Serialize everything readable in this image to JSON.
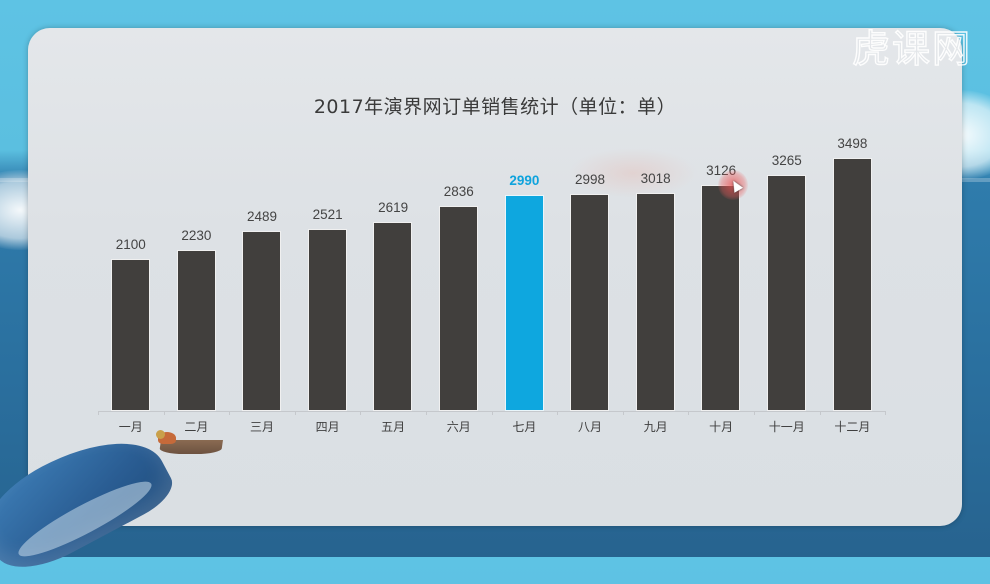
{
  "branding": {
    "logo_text": "虎课网"
  },
  "chart_data": {
    "type": "bar",
    "title": "2017年演界网订单销售统计（单位：单）",
    "xlabel": "",
    "ylabel": "",
    "unit": "单",
    "categories": [
      "一月",
      "二月",
      "三月",
      "四月",
      "五月",
      "六月",
      "七月",
      "八月",
      "九月",
      "十月",
      "十一月",
      "十二月"
    ],
    "values": [
      2100,
      2230,
      2489,
      2521,
      2619,
      2836,
      2990,
      2998,
      3018,
      3126,
      3265,
      3498
    ],
    "highlight_index": 6,
    "colors": {
      "bar": "#413f3d",
      "highlight": "#0ea7df",
      "label": "#444444",
      "highlight_label": "#0ea3dd"
    },
    "grid": false,
    "legend": "none",
    "ylim": [
      0,
      3498
    ]
  },
  "labels": {
    "values": [
      "2100",
      "2230",
      "2489",
      "2521",
      "2619",
      "2836",
      "2990",
      "2998",
      "3018",
      "3126",
      "3265",
      "3498"
    ],
    "categories": [
      "一月",
      "二月",
      "三月",
      "四月",
      "五月",
      "六月",
      "七月",
      "八月",
      "九月",
      "十月",
      "十一月",
      "十二月"
    ]
  }
}
